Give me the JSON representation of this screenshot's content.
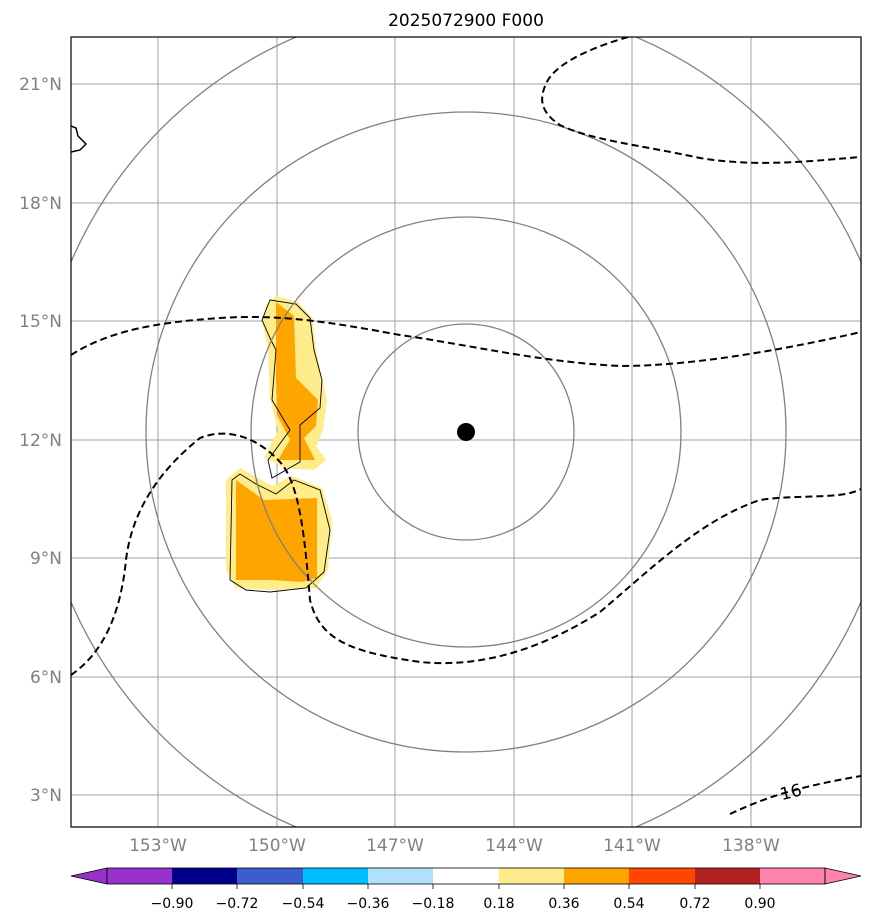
{
  "title": "2025072900 F000",
  "lat_labels": [
    "21°N",
    "18°N",
    "15°N",
    "12°N",
    "9°N",
    "6°N",
    "3°N"
  ],
  "lon_labels": [
    "153°W",
    "150°W",
    "147°W",
    "144°W",
    "141°W",
    "138°W"
  ],
  "contour_label": "16",
  "storm_center": {
    "lon": -145.2,
    "lat": 12.2
  },
  "colorbar": {
    "tick_labels": [
      "−0.90",
      "−0.72",
      "−0.54",
      "−0.36",
      "−0.18",
      "0.18",
      "0.36",
      "0.54",
      "0.72",
      "0.90"
    ],
    "colors": [
      "#9932cc",
      "#00008b",
      "#3a5fcd",
      "#00bfff",
      "#b0e2ff",
      "#ffffff",
      "#ffec8b",
      "#ffa500",
      "#ff4500",
      "#b22222",
      "#ff82ab"
    ]
  },
  "colors": {
    "grid": "#a0a0a0",
    "range_rings": "#808080",
    "contour": "#000000",
    "fill_light": "#ffec8b",
    "fill_orange": "#ffa500"
  }
}
